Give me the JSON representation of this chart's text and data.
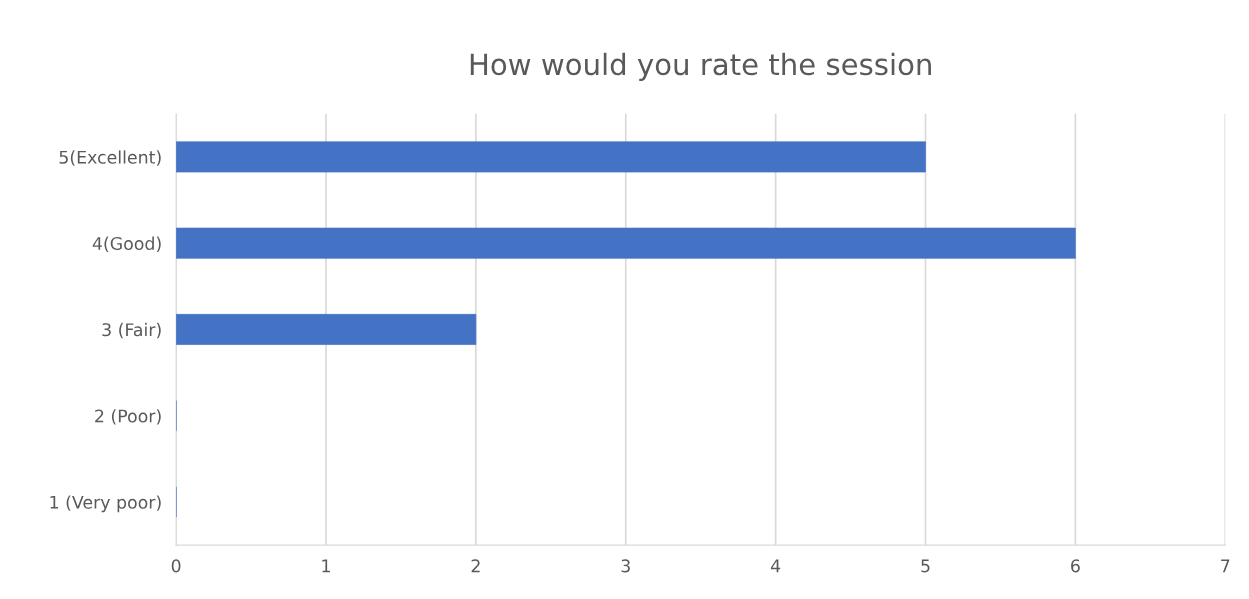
{
  "chart_data": {
    "type": "bar",
    "orientation": "horizontal",
    "title": "How would you rate the session",
    "categories": [
      "5(Excellent)",
      "4(Good)",
      "3 (Fair)",
      "2 (Poor)",
      "1 (Very poor)"
    ],
    "values": [
      5,
      6,
      2,
      0,
      0
    ],
    "color": "#4472c4",
    "xlim": [
      0,
      7
    ],
    "xticks": [
      0,
      1,
      2,
      3,
      4,
      5,
      6,
      7
    ],
    "grid": "x",
    "legend": false
  }
}
